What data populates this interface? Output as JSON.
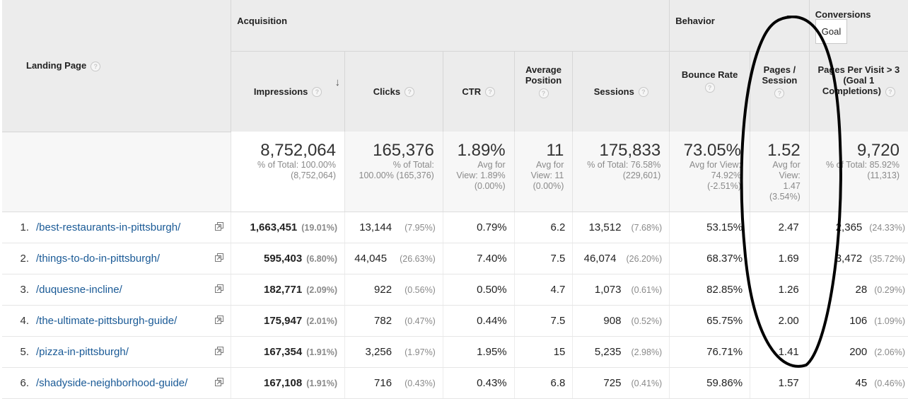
{
  "groups": {
    "acquisition": "Acquisition",
    "behavior": "Behavior",
    "conversions": "Conversions",
    "goal_select": "Goal"
  },
  "columns": {
    "landing_page": "Landing Page",
    "impressions": "Impressions",
    "clicks": "Clicks",
    "ctr": "CTR",
    "avg_position_l1": "Average",
    "avg_position_l2": "Position",
    "sessions": "Sessions",
    "bounce_rate": "Bounce Rate",
    "pages_session_l1": "Pages /",
    "pages_session_l2": "Session",
    "goal_l1": "Pages Per Visit > 3",
    "goal_l2": "(Goal 1",
    "goal_l3": "Completions)"
  },
  "totals": {
    "impressions": {
      "value": "8,752,064",
      "s1": "% of Total: 100.00%",
      "s2": "(8,752,064)"
    },
    "clicks": {
      "value": "165,376",
      "s1": "% of Total:",
      "s2": "100.00% (165,376)"
    },
    "ctr": {
      "value": "1.89%",
      "s1": "Avg for",
      "s2": "View: 1.89%",
      "s3": "(0.00%)"
    },
    "avg_position": {
      "value": "11",
      "s1": "Avg for",
      "s2": "View: 11",
      "s3": "(0.00%)"
    },
    "sessions": {
      "value": "175,833",
      "s1": "% of Total: 76.58%",
      "s2": "(229,601)"
    },
    "bounce_rate": {
      "value": "73.05%",
      "s1": "Avg for View:",
      "s2": "74.92%",
      "s3": "(-2.51%)"
    },
    "pages_session": {
      "value": "1.52",
      "s1": "Avg for",
      "s2": "View:",
      "s3": "1.47",
      "s4": "(3.54%)"
    },
    "goal": {
      "value": "9,720",
      "s1": "% of Total: 85.92%",
      "s2": "(11,313)"
    }
  },
  "rows": [
    {
      "idx": "1.",
      "page": "/best-restaurants-in-pittsburgh/",
      "impressions": "1,663,451",
      "imp_pct": "(19.01%)",
      "clicks": "13,144",
      "clicks_pct": "(7.95%)",
      "ctr": "0.79%",
      "position": "6.2",
      "sessions": "13,512",
      "sessions_pct": "(7.68%)",
      "bounce": "53.15%",
      "pps": "2.47",
      "goal": "2,365",
      "goal_pct": "(24.33%)"
    },
    {
      "idx": "2.",
      "page": "/things-to-do-in-pittsburgh/",
      "impressions": "595,403",
      "imp_pct": "(6.80%)",
      "clicks": "44,045",
      "clicks_pct": "(26.63%)",
      "ctr": "7.40%",
      "position": "7.5",
      "sessions": "46,074",
      "sessions_pct": "(26.20%)",
      "bounce": "68.37%",
      "pps": "1.69",
      "goal": "3,472",
      "goal_pct": "(35.72%)"
    },
    {
      "idx": "3.",
      "page": "/duquesne-incline/",
      "impressions": "182,771",
      "imp_pct": "(2.09%)",
      "clicks": "922",
      "clicks_pct": "(0.56%)",
      "ctr": "0.50%",
      "position": "4.7",
      "sessions": "1,073",
      "sessions_pct": "(0.61%)",
      "bounce": "82.85%",
      "pps": "1.26",
      "goal": "28",
      "goal_pct": "(0.29%)"
    },
    {
      "idx": "4.",
      "page": "/the-ultimate-pittsburgh-guide/",
      "impressions": "175,947",
      "imp_pct": "(2.01%)",
      "clicks": "782",
      "clicks_pct": "(0.47%)",
      "ctr": "0.44%",
      "position": "7.5",
      "sessions": "908",
      "sessions_pct": "(0.52%)",
      "bounce": "65.75%",
      "pps": "2.00",
      "goal": "106",
      "goal_pct": "(1.09%)"
    },
    {
      "idx": "5.",
      "page": "/pizza-in-pittsburgh/",
      "impressions": "167,354",
      "imp_pct": "(1.91%)",
      "clicks": "3,256",
      "clicks_pct": "(1.97%)",
      "ctr": "1.95%",
      "position": "15",
      "sessions": "5,235",
      "sessions_pct": "(2.98%)",
      "bounce": "76.71%",
      "pps": "1.41",
      "goal": "200",
      "goal_pct": "(2.06%)"
    },
    {
      "idx": "6.",
      "page": "/shadyside-neighborhood-guide/",
      "impressions": "167,108",
      "imp_pct": "(1.91%)",
      "clicks": "716",
      "clicks_pct": "(0.43%)",
      "ctr": "0.43%",
      "position": "6.8",
      "sessions": "725",
      "sessions_pct": "(0.41%)",
      "bounce": "59.86%",
      "pps": "1.57",
      "goal": "45",
      "goal_pct": "(0.46%)"
    }
  ]
}
